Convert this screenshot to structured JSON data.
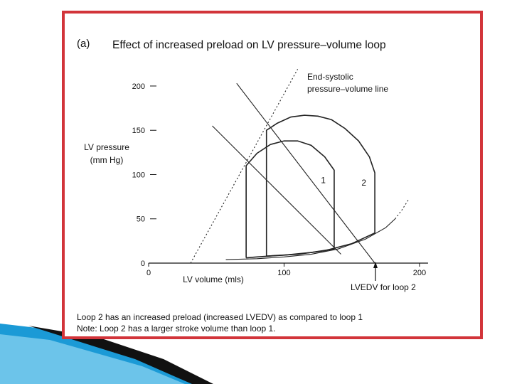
{
  "panel_label": "(a)",
  "chart_data": {
    "type": "line",
    "title": "Effect of increased preload on LV pressure–volume loop",
    "y_label": [
      "LV pressure",
      "(mm Hg)"
    ],
    "x_label": "LV volume (mls)",
    "xlim": [
      0,
      210
    ],
    "xticks": [
      0,
      100,
      200
    ],
    "ylim": [
      0,
      230
    ],
    "yticks": [
      0,
      50,
      100,
      150,
      200
    ],
    "grid": false,
    "series": [
      {
        "name": "1",
        "color": "#222",
        "x": [
          72,
          72,
          80,
          90,
          100,
          110,
          120,
          130,
          137,
          137,
          137,
          120,
          100,
          80,
          72
        ],
        "values": [
          6,
          110,
          124,
          134,
          138,
          138,
          133,
          120,
          105,
          96,
          16,
          12,
          9,
          7,
          6
        ]
      },
      {
        "name": "2",
        "color": "#222",
        "x": [
          87,
          87,
          95,
          105,
          115,
          125,
          135,
          145,
          155,
          163,
          167,
          167,
          150,
          130,
          110,
          87
        ],
        "values": [
          8,
          150,
          158,
          165,
          167,
          166,
          162,
          152,
          138,
          120,
          102,
          34,
          22,
          14,
          10,
          8
        ]
      },
      {
        "color": "#222",
        "dashed": false,
        "x": [
          57,
          80,
          100,
          120,
          140,
          160,
          175,
          182
        ],
        "values": [
          4,
          5,
          7,
          10,
          16,
          27,
          40,
          50
        ]
      },
      {
        "color": "#222",
        "dashed": true,
        "x": [
          182,
          187,
          192
        ],
        "values": [
          50,
          60,
          72
        ]
      },
      {
        "color": "#222",
        "dashed": true,
        "x": [
          31,
          110
        ],
        "values": [
          0,
          219
        ]
      },
      {
        "color": "#222",
        "dashed": false,
        "x": [
          65,
          167
        ],
        "values": [
          203,
          0
        ]
      },
      {
        "color": "#222",
        "dashed": false,
        "x": [
          47,
          142
        ],
        "values": [
          155,
          10
        ]
      }
    ],
    "annotations": [
      "End-systolic",
      "pressure–volume line",
      "LVEDV for loop 2"
    ]
  },
  "notes": [
    "Loop 2 has an increased preload (increased LVEDV) as compared to loop 1",
    "Note: Loop 2 has a larger stroke volume than loop 1."
  ]
}
